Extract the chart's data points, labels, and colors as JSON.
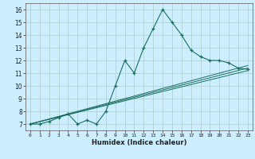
{
  "title": "",
  "xlabel": "Humidex (Indice chaleur)",
  "bg_color": "#cceeff",
  "grid_color": "#aacccc",
  "line_color": "#1a6e5e",
  "xlim": [
    -0.5,
    23.5
  ],
  "ylim": [
    6.5,
    16.5
  ],
  "xticks": [
    0,
    1,
    2,
    3,
    4,
    5,
    6,
    7,
    8,
    9,
    10,
    11,
    12,
    13,
    14,
    15,
    16,
    17,
    18,
    19,
    20,
    21,
    22,
    23
  ],
  "yticks": [
    7,
    8,
    9,
    10,
    11,
    12,
    13,
    14,
    15,
    16
  ],
  "main_x": [
    0,
    1,
    2,
    3,
    4,
    5,
    6,
    7,
    8,
    9,
    10,
    11,
    12,
    13,
    14,
    15,
    16,
    17,
    18,
    19,
    20,
    21,
    22,
    23
  ],
  "main_y": [
    7.0,
    7.0,
    7.2,
    7.5,
    7.8,
    7.0,
    7.3,
    7.0,
    8.0,
    10.0,
    12.0,
    11.0,
    13.0,
    14.5,
    16.0,
    15.0,
    14.0,
    12.8,
    12.3,
    12.0,
    12.0,
    11.8,
    11.4,
    11.3
  ],
  "line2_x": [
    0,
    23
  ],
  "line2_y": [
    7.0,
    11.2
  ],
  "line3_x": [
    0,
    23
  ],
  "line3_y": [
    7.0,
    11.4
  ],
  "line4_x": [
    0,
    23
  ],
  "line4_y": [
    7.0,
    11.6
  ]
}
